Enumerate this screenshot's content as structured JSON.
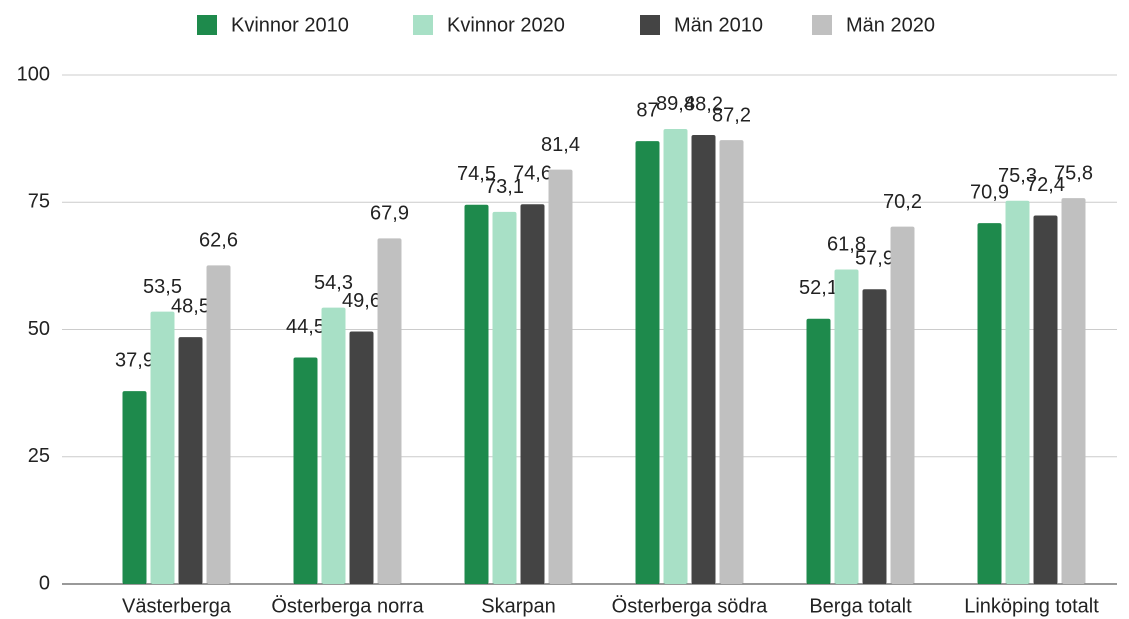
{
  "chart_data": {
    "type": "bar",
    "categories": [
      "Västerberga",
      "Österberga norra",
      "Skarpan",
      "Österberga södra",
      "Berga totalt",
      "Linköping totalt"
    ],
    "series": [
      {
        "name": "Kvinnor 2010",
        "color": "#1e8a4c",
        "label_color": "#1e8a4c",
        "values": [
          37.9,
          44.5,
          74.5,
          87,
          52.1,
          70.9
        ],
        "value_labels": [
          "37,9",
          "44,5",
          "74,5",
          "87",
          "52,1",
          "70,9"
        ]
      },
      {
        "name": "Kvinnor 2020",
        "color": "#a8e0c6",
        "label_color": "#a8e0c6",
        "values": [
          53.5,
          54.3,
          73.1,
          89.4,
          61.8,
          75.3
        ],
        "value_labels": [
          "53,5",
          "54,3",
          "73,1",
          "89,4",
          "61,8",
          "75,3"
        ]
      },
      {
        "name": "Män 2010",
        "color": "#444444",
        "label_color": "#333333",
        "values": [
          48.5,
          49.6,
          74.6,
          88.2,
          57.9,
          72.4
        ],
        "value_labels": [
          "48,5",
          "49,6",
          "74,6",
          "88,2",
          "57,9",
          "72,4"
        ]
      },
      {
        "name": "Män 2020",
        "color": "#c0c0c0",
        "label_color": "#222222",
        "values": [
          62.6,
          67.9,
          81.4,
          87.2,
          70.2,
          75.8
        ],
        "value_labels": [
          "62,6",
          "67,9",
          "81,4",
          "87,2",
          "70,2",
          "75,8"
        ]
      }
    ],
    "ylim": [
      0,
      100
    ],
    "yticks": [
      0,
      25,
      50,
      75,
      100
    ],
    "grid": true,
    "legend": "top"
  }
}
